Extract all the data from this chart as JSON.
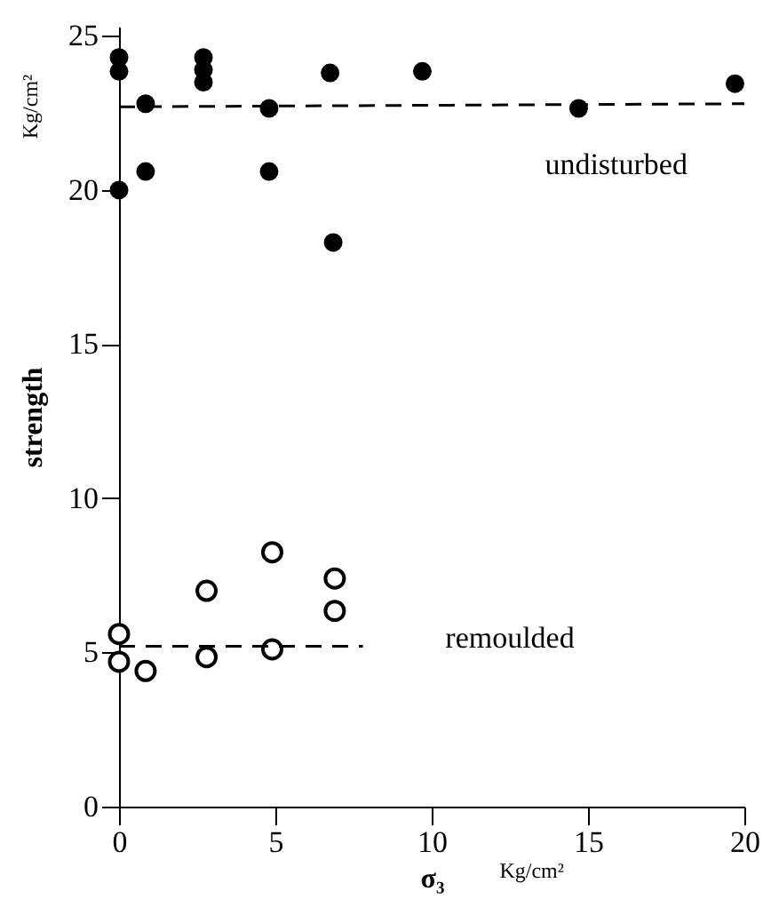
{
  "chart_data": {
    "type": "scatter",
    "xlabel": "σ₃",
    "ylabel": "strength",
    "xlim": [
      0,
      20
    ],
    "ylim": [
      0,
      25.3
    ],
    "xticks": [
      0,
      5,
      10,
      15,
      20
    ],
    "yticks": [
      0,
      5,
      10,
      15,
      20,
      25
    ],
    "grid": false,
    "marker": "circle",
    "series": [
      {
        "color": "#000000",
        "x": [
          0,
          0,
          0,
          0.85,
          0.85,
          2.7,
          2.7,
          2.7,
          4.8,
          4.8,
          6.75,
          6.85,
          9.7,
          14.7,
          19.7
        ],
        "values": [
          24.3,
          23.85,
          20.0,
          22.8,
          20.6,
          24.3,
          23.9,
          23.5,
          22.65,
          20.6,
          23.8,
          18.3,
          23.85,
          22.65,
          23.45
        ]
      },
      {
        "color": "#000000",
        "x": [
          0,
          0,
          0.85,
          2.8,
          2.8,
          4.9,
          4.9,
          6.9,
          6.9
        ],
        "values": [
          5.6,
          4.7,
          4.4,
          7.0,
          4.85,
          8.25,
          5.1,
          7.4,
          6.35
        ]
      },
      {
        "type": "line",
        "color": "#000000",
        "line_style": "dashed",
        "marker": "none",
        "x": [
          0,
          20
        ],
        "values": [
          22.7,
          22.8
        ]
      },
      {
        "type": "line",
        "color": "#000000",
        "line_style": "dashed",
        "marker": "none",
        "x": [
          0,
          7.8
        ],
        "values": [
          5.2,
          5.2
        ]
      }
    ],
    "annotations": [
      "undisturbed",
      "remoulded",
      "Kg/cm²",
      "Kg/cm²"
    ]
  }
}
